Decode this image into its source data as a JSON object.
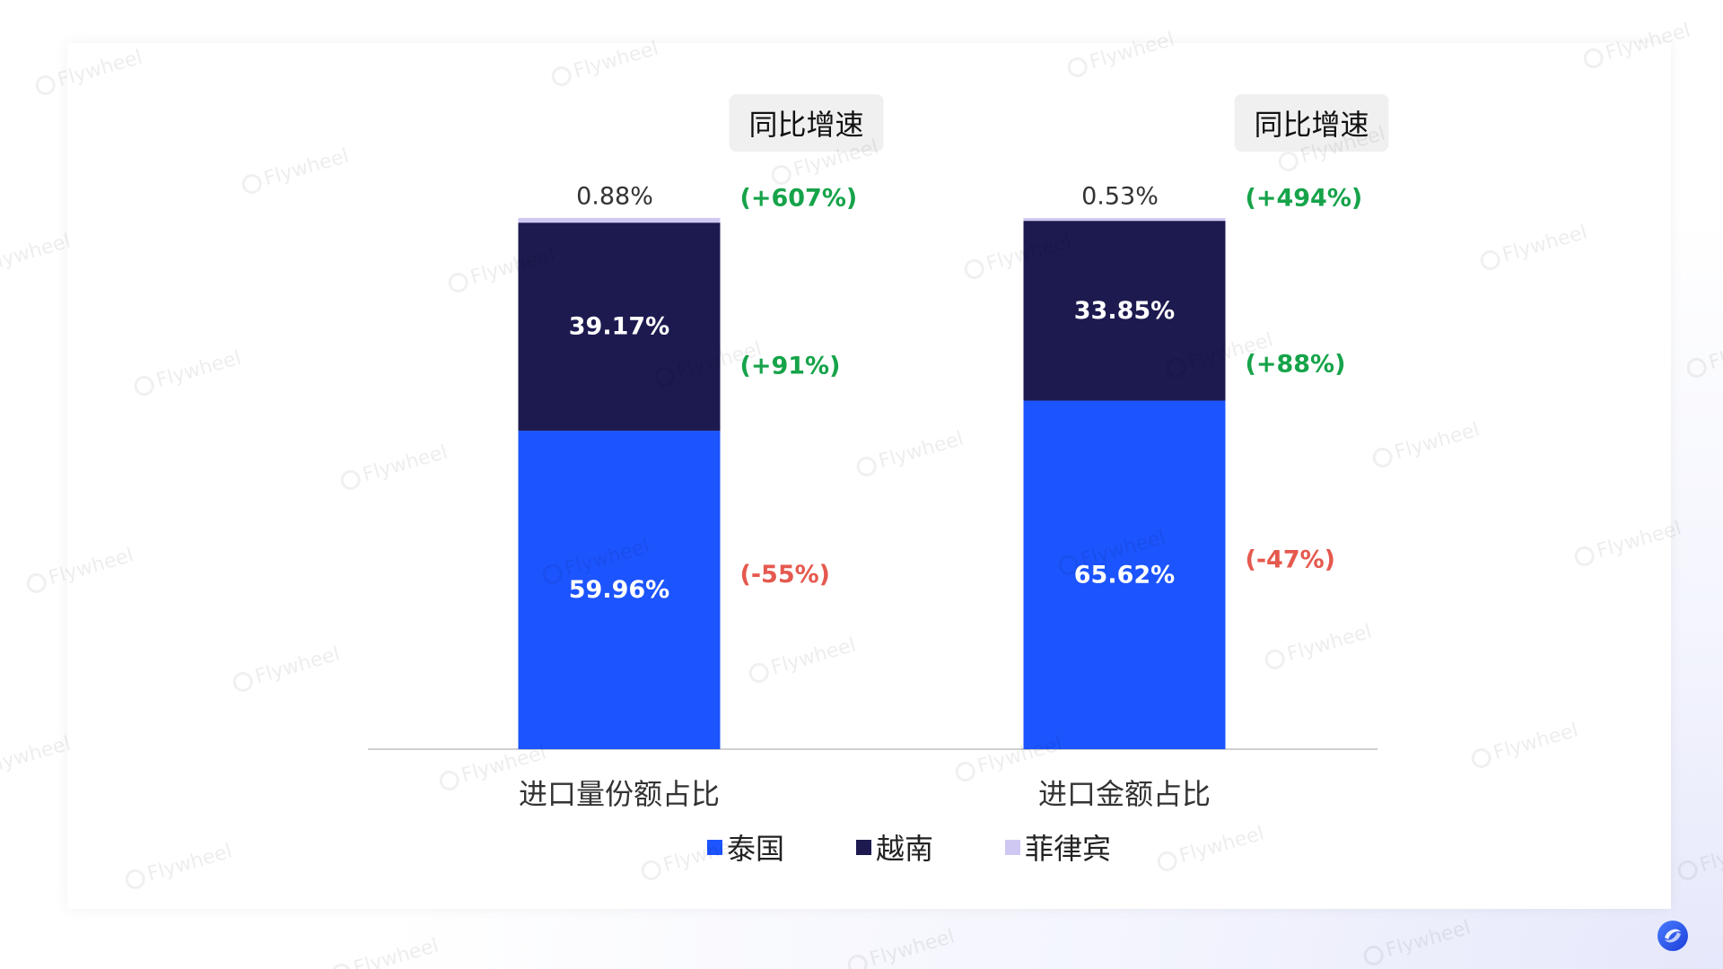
{
  "watermark": {
    "text": "Flywheel"
  },
  "chart_data": {
    "type": "bar",
    "stacked": true,
    "categories": [
      "进口量份额占比",
      "进口金额占比"
    ],
    "series": [
      {
        "name": "泰国",
        "color": "#1c54fe",
        "values": [
          59.96,
          65.62
        ],
        "labels": [
          "59.96%",
          "65.62%"
        ],
        "growth": [
          "(-55%)",
          "(-47%)"
        ],
        "growth_color": "#e5594f"
      },
      {
        "name": "越南",
        "color": "#1c1a4f",
        "values": [
          39.17,
          33.85
        ],
        "labels": [
          "39.17%",
          "33.85%"
        ],
        "growth": [
          "(+91%)",
          "(+88%)"
        ],
        "growth_color": "#16a34a"
      },
      {
        "name": "菲律宾",
        "color": "#cfc8f3",
        "values": [
          0.88,
          0.53
        ],
        "labels": [
          "0.88%",
          "0.53%"
        ],
        "growth": [
          "(+607%)",
          "(+494%)"
        ],
        "growth_color": "#16a34a"
      }
    ],
    "growth_header": "同比增速",
    "ylim": [
      0,
      100
    ],
    "grid": false,
    "legend_position": "bottom"
  }
}
